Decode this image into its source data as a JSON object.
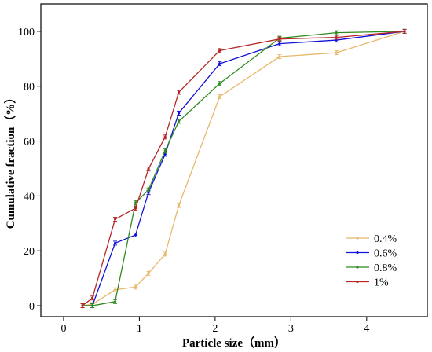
{
  "chart_data": {
    "type": "line",
    "title": "",
    "xlabel": "Particle size（mm）",
    "ylabel": "Cumulative fraction（%）",
    "xlim": [
      -0.3,
      4.8
    ],
    "ylim": [
      -4,
      110
    ],
    "xticks": [
      0,
      1,
      2,
      3,
      4
    ],
    "yticks": [
      0,
      20,
      40,
      60,
      80,
      100
    ],
    "grid": false,
    "legend_position": "bottom-right",
    "series": [
      {
        "name": "0.4%",
        "color": "#E8B86A",
        "x": [
          0.25,
          0.38,
          0.68,
          0.95,
          1.12,
          1.34,
          1.52,
          2.06,
          2.85,
          3.6,
          4.5
        ],
        "y": [
          0,
          0.5,
          5.8,
          6.8,
          11.8,
          18.8,
          36.5,
          76.2,
          90.8,
          92.2,
          100
        ]
      },
      {
        "name": "0.6%",
        "color": "#1212D8",
        "x": [
          0.25,
          0.38,
          0.68,
          0.95,
          1.12,
          1.34,
          1.52,
          2.06,
          2.85,
          3.6,
          4.5
        ],
        "y": [
          0,
          0,
          22.8,
          25.8,
          41.2,
          55.2,
          70.2,
          88.2,
          95.5,
          96.8,
          100
        ]
      },
      {
        "name": "0.8%",
        "color": "#2E8B1E",
        "x": [
          0.25,
          0.38,
          0.68,
          0.95,
          1.12,
          1.34,
          1.52,
          2.06,
          2.85,
          3.6,
          4.5
        ],
        "y": [
          0,
          0,
          1.5,
          37.5,
          42.2,
          56.5,
          67.2,
          81.0,
          97.5,
          99.5,
          100
        ]
      },
      {
        "name": "1%",
        "color": "#B52727",
        "x": [
          0.25,
          0.38,
          0.68,
          0.95,
          1.12,
          1.34,
          1.52,
          2.06,
          2.85,
          3.6,
          4.5
        ],
        "y": [
          0,
          2.8,
          31.5,
          35.5,
          49.8,
          61.5,
          77.8,
          93.0,
          97.2,
          97.8,
          100
        ]
      }
    ]
  }
}
